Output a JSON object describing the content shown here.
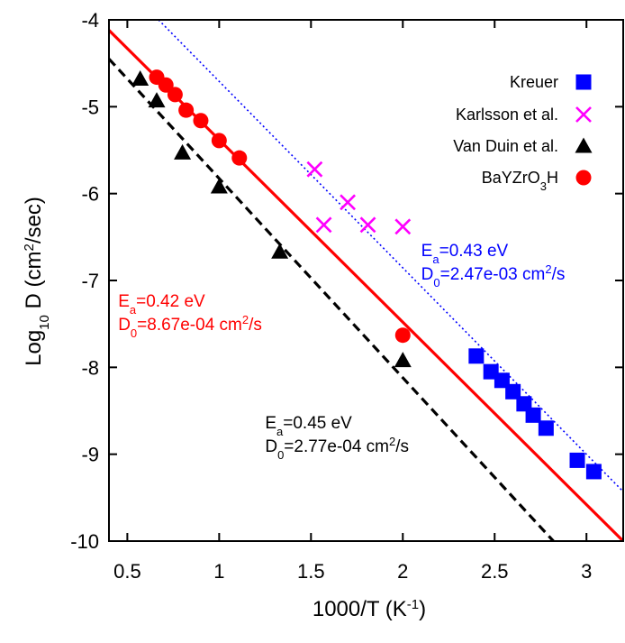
{
  "chart_data": {
    "type": "scatter",
    "xlabel": "1000/T (K",
    "xlabel_sup": "-1",
    "xlabel_end": ")",
    "ylabel": "Log",
    "ylabel_sub": "10",
    "ylabel_mid": " D (cm",
    "ylabel_sup": "2",
    "ylabel_end": "/sec)",
    "xlim": [
      0.4,
      3.2
    ],
    "ylim": [
      -10,
      -4
    ],
    "xticks": [
      0.5,
      1,
      1.5,
      2,
      2.5,
      3
    ],
    "xtick_labels": [
      "0.5",
      "1",
      "1.5",
      "2",
      "2.5",
      "3"
    ],
    "yticks": [
      -10,
      -9,
      -8,
      -7,
      -6,
      -5,
      -4
    ],
    "ytick_labels": [
      "-10",
      "-9",
      "-8",
      "-7",
      "-6",
      "-5",
      "-4"
    ],
    "grid": false,
    "legend_position": "top-right",
    "series": [
      {
        "name": "Kreuer",
        "marker": "square",
        "color": "#0000ff",
        "points": [
          [
            2.4,
            -7.87
          ],
          [
            2.48,
            -8.05
          ],
          [
            2.54,
            -8.15
          ],
          [
            2.6,
            -8.28
          ],
          [
            2.66,
            -8.42
          ],
          [
            2.71,
            -8.55
          ],
          [
            2.78,
            -8.7
          ],
          [
            2.95,
            -9.07
          ],
          [
            3.04,
            -9.2
          ]
        ]
      },
      {
        "name": "Karlsson et al.",
        "marker": "x",
        "color": "#ff00ff",
        "points": [
          [
            1.52,
            -5.72
          ],
          [
            1.57,
            -6.36
          ],
          [
            1.7,
            -6.1
          ],
          [
            1.81,
            -6.36
          ],
          [
            2.0,
            -6.38
          ]
        ]
      },
      {
        "name": "Van Duin et al.",
        "marker": "triangle",
        "color": "#000000",
        "points": [
          [
            0.57,
            -4.68
          ],
          [
            0.66,
            -4.93
          ],
          [
            0.8,
            -5.53
          ],
          [
            1.0,
            -5.92
          ],
          [
            1.33,
            -6.67
          ],
          [
            2.0,
            -7.92
          ]
        ]
      },
      {
        "name": "BaYZrO",
        "name_sub": "3",
        "name_end": "H",
        "marker": "circle",
        "color": "#ff0000",
        "points": [
          [
            0.66,
            -4.66
          ],
          [
            0.71,
            -4.75
          ],
          [
            0.76,
            -4.86
          ],
          [
            0.82,
            -5.04
          ],
          [
            0.9,
            -5.16
          ],
          [
            1.0,
            -5.39
          ],
          [
            1.11,
            -5.59
          ],
          [
            2.0,
            -7.63
          ]
        ]
      }
    ],
    "fits": [
      {
        "series": "Kreuer",
        "color": "#0000ff",
        "style": "dotted",
        "line": [
          [
            0.67,
            -4.0
          ],
          [
            3.2,
            -9.43
          ]
        ]
      },
      {
        "series": "BaYZrO3H",
        "color": "#ff0000",
        "style": "solid",
        "line": [
          [
            0.4,
            -4.12
          ],
          [
            3.2,
            -10.0
          ]
        ]
      },
      {
        "series": "Van Duin et al.",
        "color": "#000000",
        "style": "dashed",
        "line": [
          [
            0.4,
            -4.45
          ],
          [
            2.82,
            -10.0
          ]
        ]
      }
    ],
    "annotations": [
      {
        "color": "#0000ff",
        "line1_a": "E",
        "line1_sub": "a",
        "line1_b": "=0.43 eV",
        "line2_a": "D",
        "line2_sub": "0",
        "line2_b": "=2.47e-03 cm",
        "line2_sup": "2",
        "line2_c": "/s",
        "x": 2.1,
        "y": -6.72
      },
      {
        "color": "#ff0000",
        "line1_a": "E",
        "line1_sub": "a",
        "line1_b": "=0.42 eV",
        "line2_a": "D",
        "line2_sub": "0",
        "line2_b": "=8.67e-04 cm",
        "line2_sup": "2",
        "line2_c": "/s",
        "x": 0.45,
        "y": -7.3
      },
      {
        "color": "#000000",
        "line1_a": "E",
        "line1_sub": "a",
        "line1_b": "=0.45 eV",
        "line2_a": "D",
        "line2_sub": "0",
        "line2_b": "=2.77e-04 cm",
        "line2_sup": "2",
        "line2_c": "/s",
        "x": 1.25,
        "y": -8.7
      }
    ]
  }
}
